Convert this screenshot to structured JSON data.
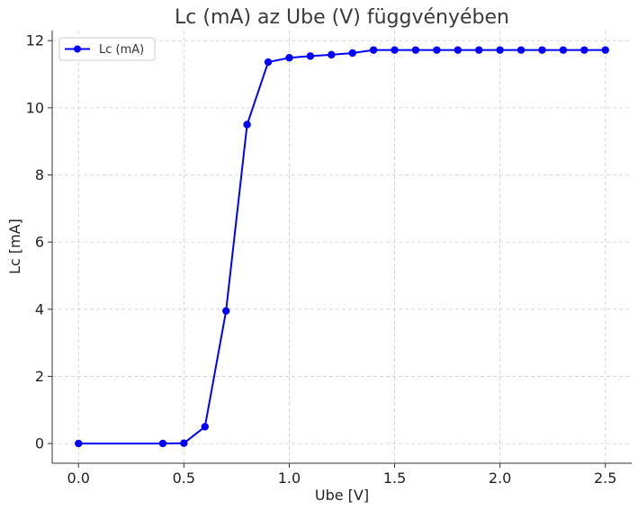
{
  "chart_data": {
    "type": "line",
    "title": "Lc (mA) az Ube (V) függvényében",
    "xlabel": "Ube [V]",
    "ylabel": "Lc [mA]",
    "xlim": [
      -0.125,
      2.625
    ],
    "ylim": [
      -0.587,
      12.3
    ],
    "xticks": [
      0.0,
      0.5,
      1.0,
      1.5,
      2.0,
      2.5
    ],
    "xtick_labels": [
      "0.0",
      "0.5",
      "1.0",
      "1.5",
      "2.0",
      "2.5"
    ],
    "yticks": [
      0,
      2,
      4,
      6,
      8,
      10,
      12
    ],
    "ytick_labels": [
      "0",
      "2",
      "4",
      "6",
      "8",
      "10",
      "12"
    ],
    "grid": true,
    "legend_position": "top-left",
    "series": [
      {
        "name": "Lc (mA)",
        "color": "#0000ff",
        "marker": "circle",
        "x": [
          0.0,
          0.4,
          0.5,
          0.6,
          0.7,
          0.8,
          0.9,
          1.0,
          1.1,
          1.2,
          1.3,
          1.4,
          1.5,
          1.6,
          1.7,
          1.8,
          1.9,
          2.0,
          2.1,
          2.2,
          2.3,
          2.4,
          2.5
        ],
        "y": [
          0.0,
          0.0,
          0.01,
          0.5,
          3.95,
          9.5,
          11.36,
          11.49,
          11.54,
          11.58,
          11.63,
          11.72,
          11.72,
          11.72,
          11.72,
          11.72,
          11.72,
          11.72,
          11.72,
          11.72,
          11.72,
          11.72,
          11.72
        ]
      }
    ]
  }
}
